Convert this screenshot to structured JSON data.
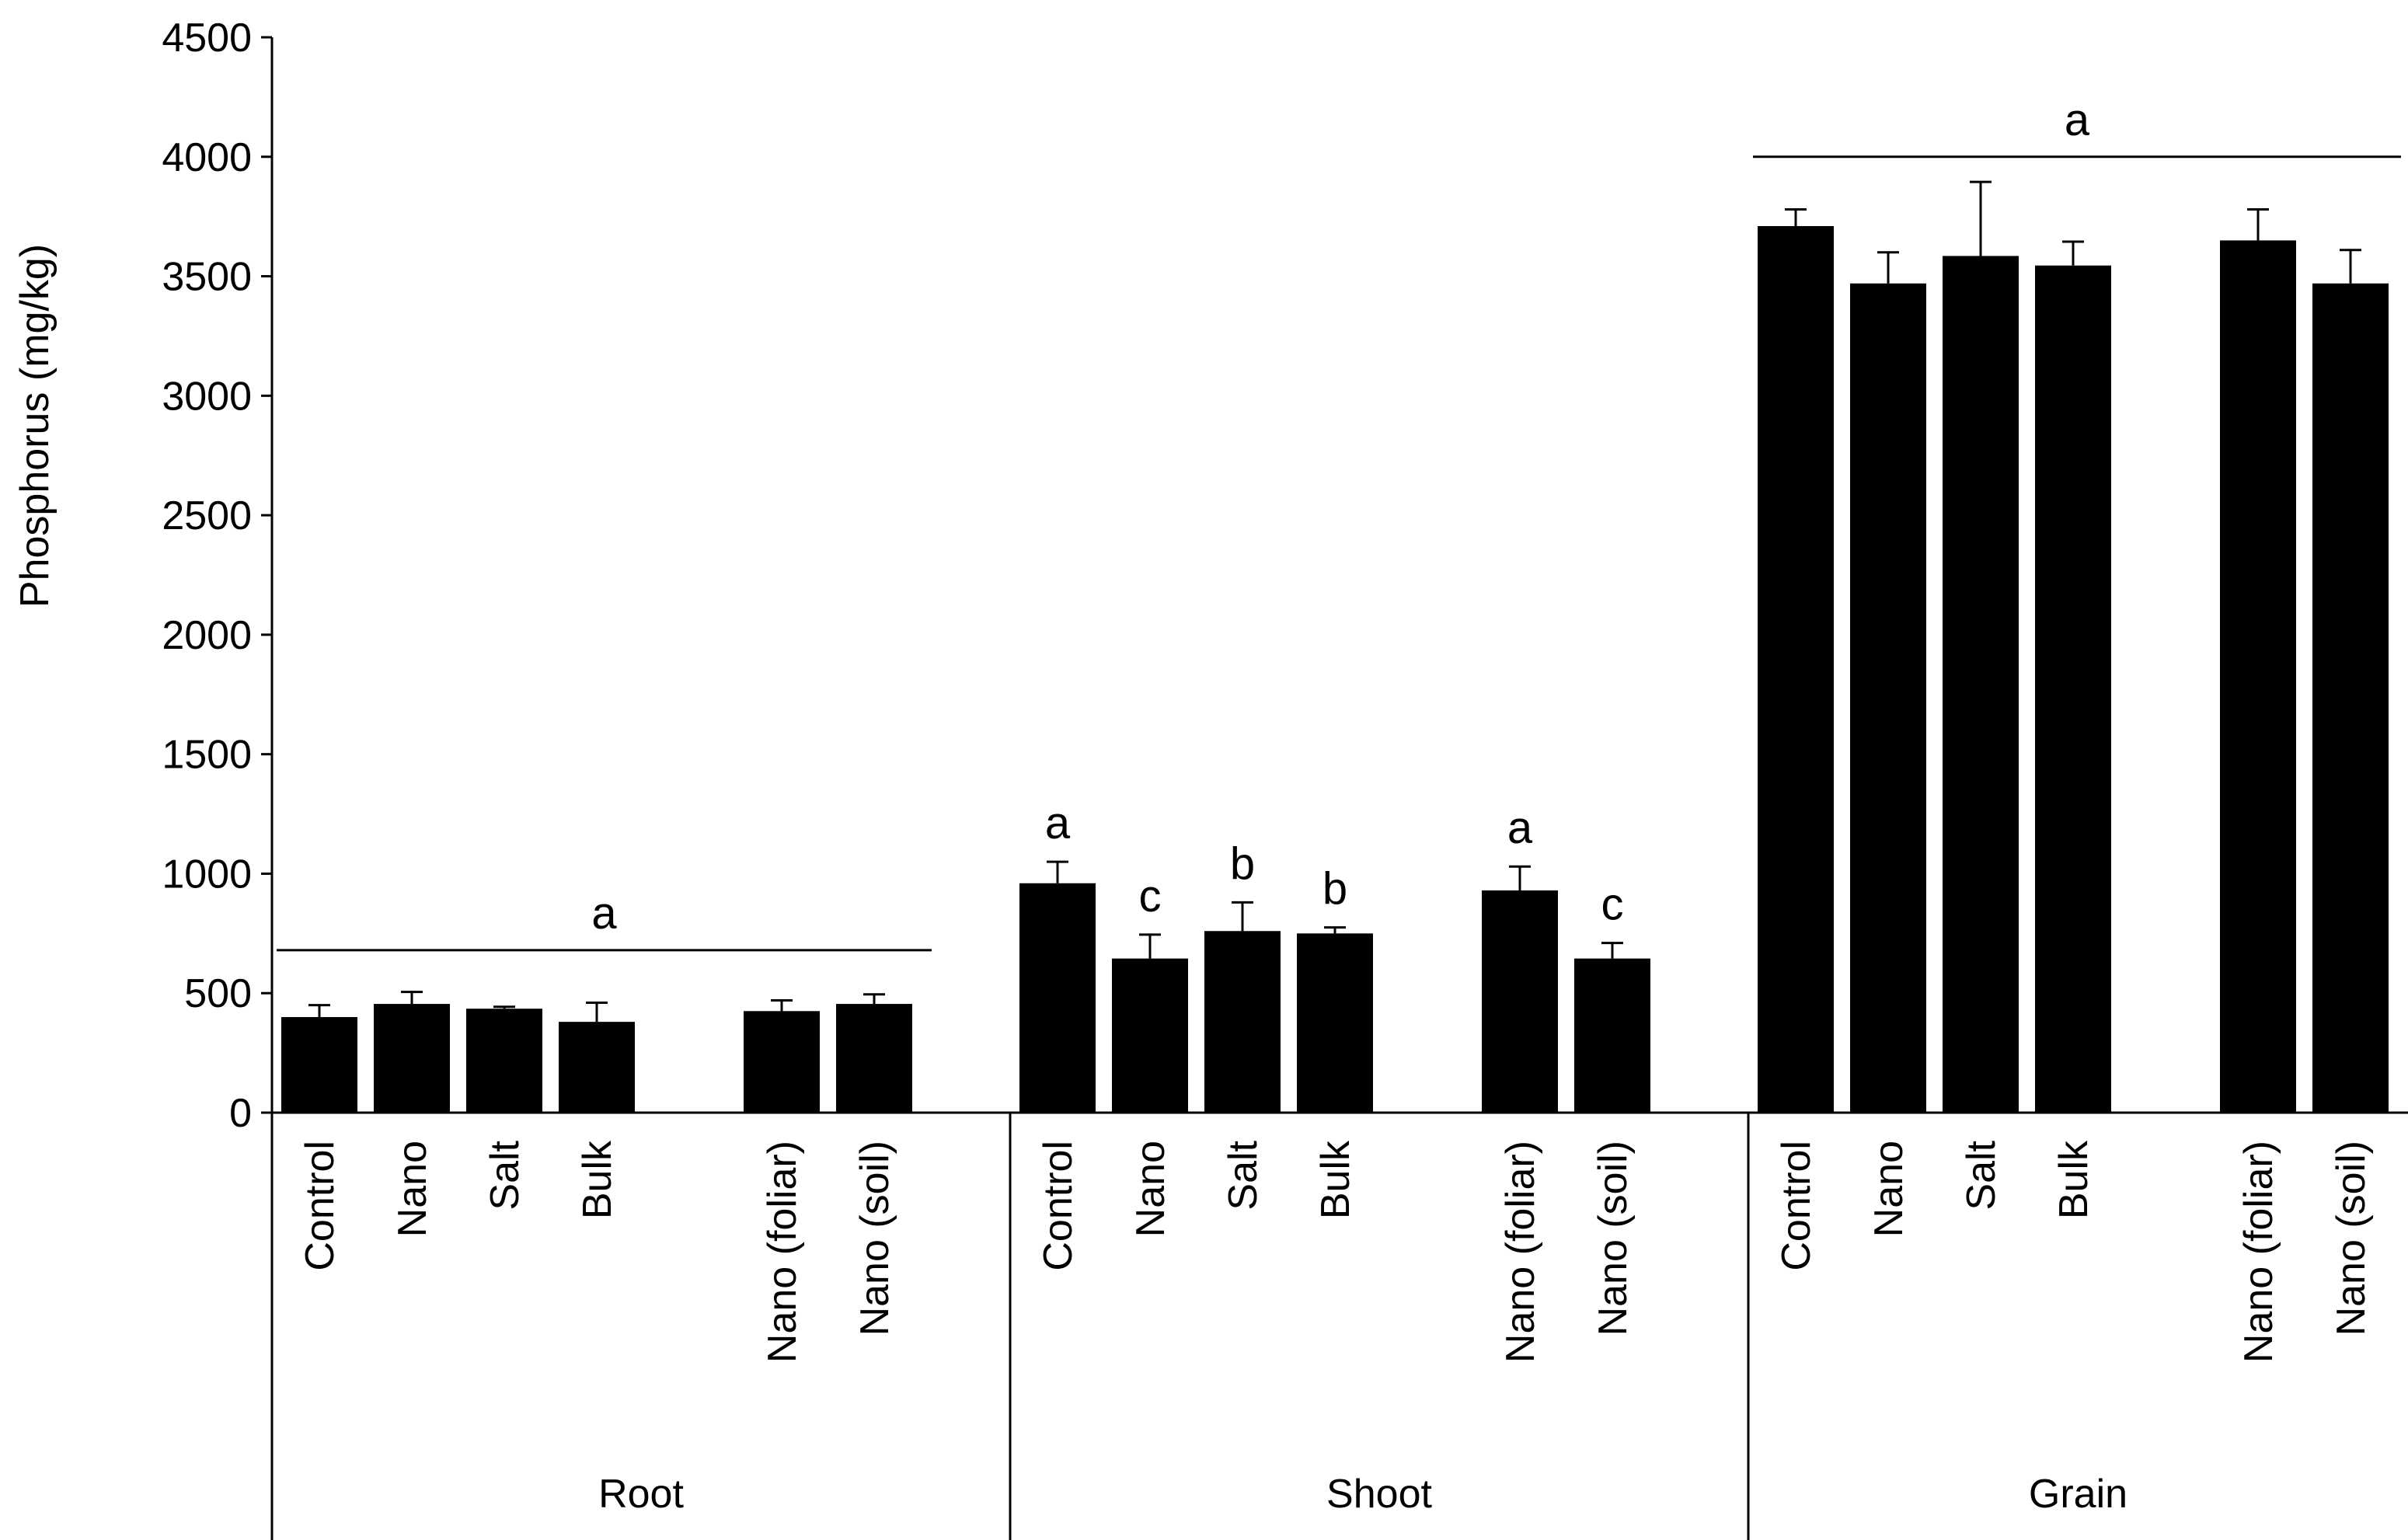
{
  "chart_data": {
    "type": "bar",
    "ylabel": "Phosphorus (mg/kg)",
    "xlabel": "",
    "ylim": [
      0,
      4500
    ],
    "yticks": [
      0,
      500,
      1000,
      1500,
      2000,
      2500,
      3000,
      3500,
      4000,
      4500
    ],
    "grid": false,
    "legend": "none",
    "bar_color": "#000000",
    "groups": [
      {
        "name": "Root",
        "categories": [
          "Control",
          "Nano",
          "Salt",
          "Bulk",
          "",
          "Nano (foliar)",
          "Nano (soil)"
        ],
        "values": [
          400,
          455,
          435,
          380,
          null,
          425,
          455
        ],
        "errors": [
          50,
          50,
          8,
          80,
          null,
          45,
          40
        ],
        "letters": [
          "",
          "",
          "",
          "",
          "",
          "",
          ""
        ],
        "group_letter": "a",
        "group_line_value": 680
      },
      {
        "name": "Shoot",
        "categories": [
          "Control",
          "Nano",
          "Salt",
          "Bulk",
          "",
          "Nano (foliar)",
          "Nano (soil)"
        ],
        "values": [
          960,
          645,
          760,
          750,
          null,
          930,
          645
        ],
        "errors": [
          90,
          100,
          120,
          25,
          null,
          100,
          65
        ],
        "letters": [
          "a",
          "c",
          "b",
          "b",
          "",
          "a",
          "c"
        ],
        "group_letter": "",
        "group_line_value": null
      },
      {
        "name": "Grain",
        "categories": [
          "Control",
          "Nano",
          "Salt",
          "Bulk",
          "",
          "Nano (foliar)",
          "Nano (soil)"
        ],
        "values": [
          3710,
          3470,
          3585,
          3545,
          null,
          3650,
          3470
        ],
        "errors": [
          70,
          130,
          310,
          100,
          null,
          130,
          140
        ],
        "letters": [
          "",
          "",
          "",
          "",
          "",
          "",
          ""
        ],
        "group_letter": "a",
        "group_line_value": 4000
      }
    ]
  }
}
